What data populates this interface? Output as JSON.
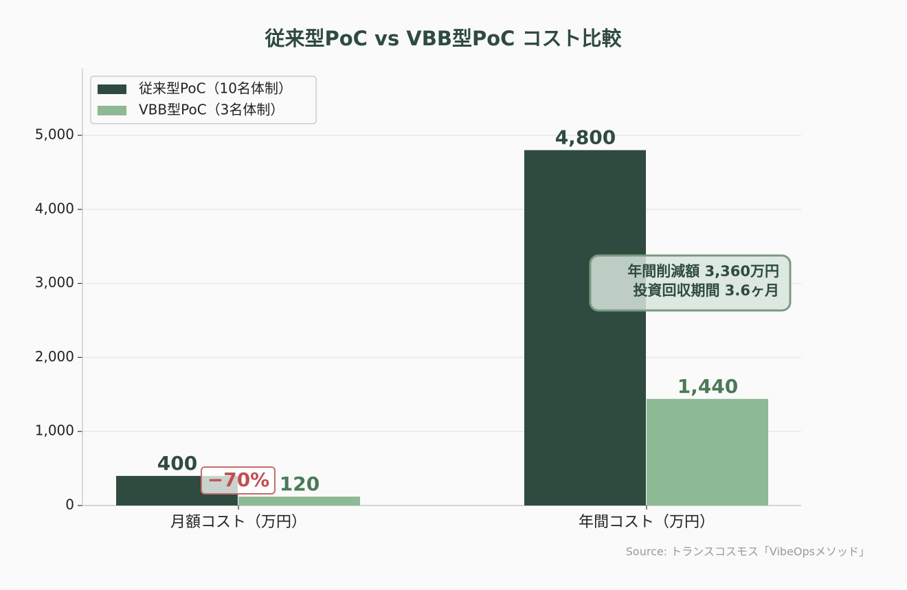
{
  "chart_data": {
    "type": "bar",
    "title": "従来型PoC vs VBB型PoC コスト比較",
    "categories": [
      "月額コスト（万円）",
      "年間コスト（万円）"
    ],
    "series": [
      {
        "name": "従来型PoC（10名体制）",
        "color": "#2f4b3f",
        "label_color": "#2f4b3f",
        "values": [
          400,
          4800
        ],
        "value_labels": [
          "400",
          "4,800"
        ]
      },
      {
        "name": "VBB型PoC（3名体制）",
        "color": "#8db995",
        "label_color": "#4a7a58",
        "values": [
          120,
          1440
        ],
        "value_labels": [
          "120",
          "1,440"
        ]
      }
    ],
    "ylim": [
      0,
      5900
    ],
    "yticks": [
      0,
      {
        "value": 1000,
        "label": "1,000"
      },
      {
        "value": 2000,
        "label": "2,000"
      },
      {
        "value": 3000,
        "label": "3,000"
      },
      {
        "value": 4000,
        "label": "4,000"
      },
      {
        "value": 5000,
        "label": "5,000"
      }
    ],
    "grid": true,
    "legend": "upper left",
    "annotations": [
      {
        "text": "−70%"
      },
      {
        "lines": [
          "年間削減額  3,360万円",
          "投資回収期間  3.6ヶ月"
        ]
      }
    ],
    "source": "Source: トランスコスモス「VibeOpsメソッド」"
  }
}
